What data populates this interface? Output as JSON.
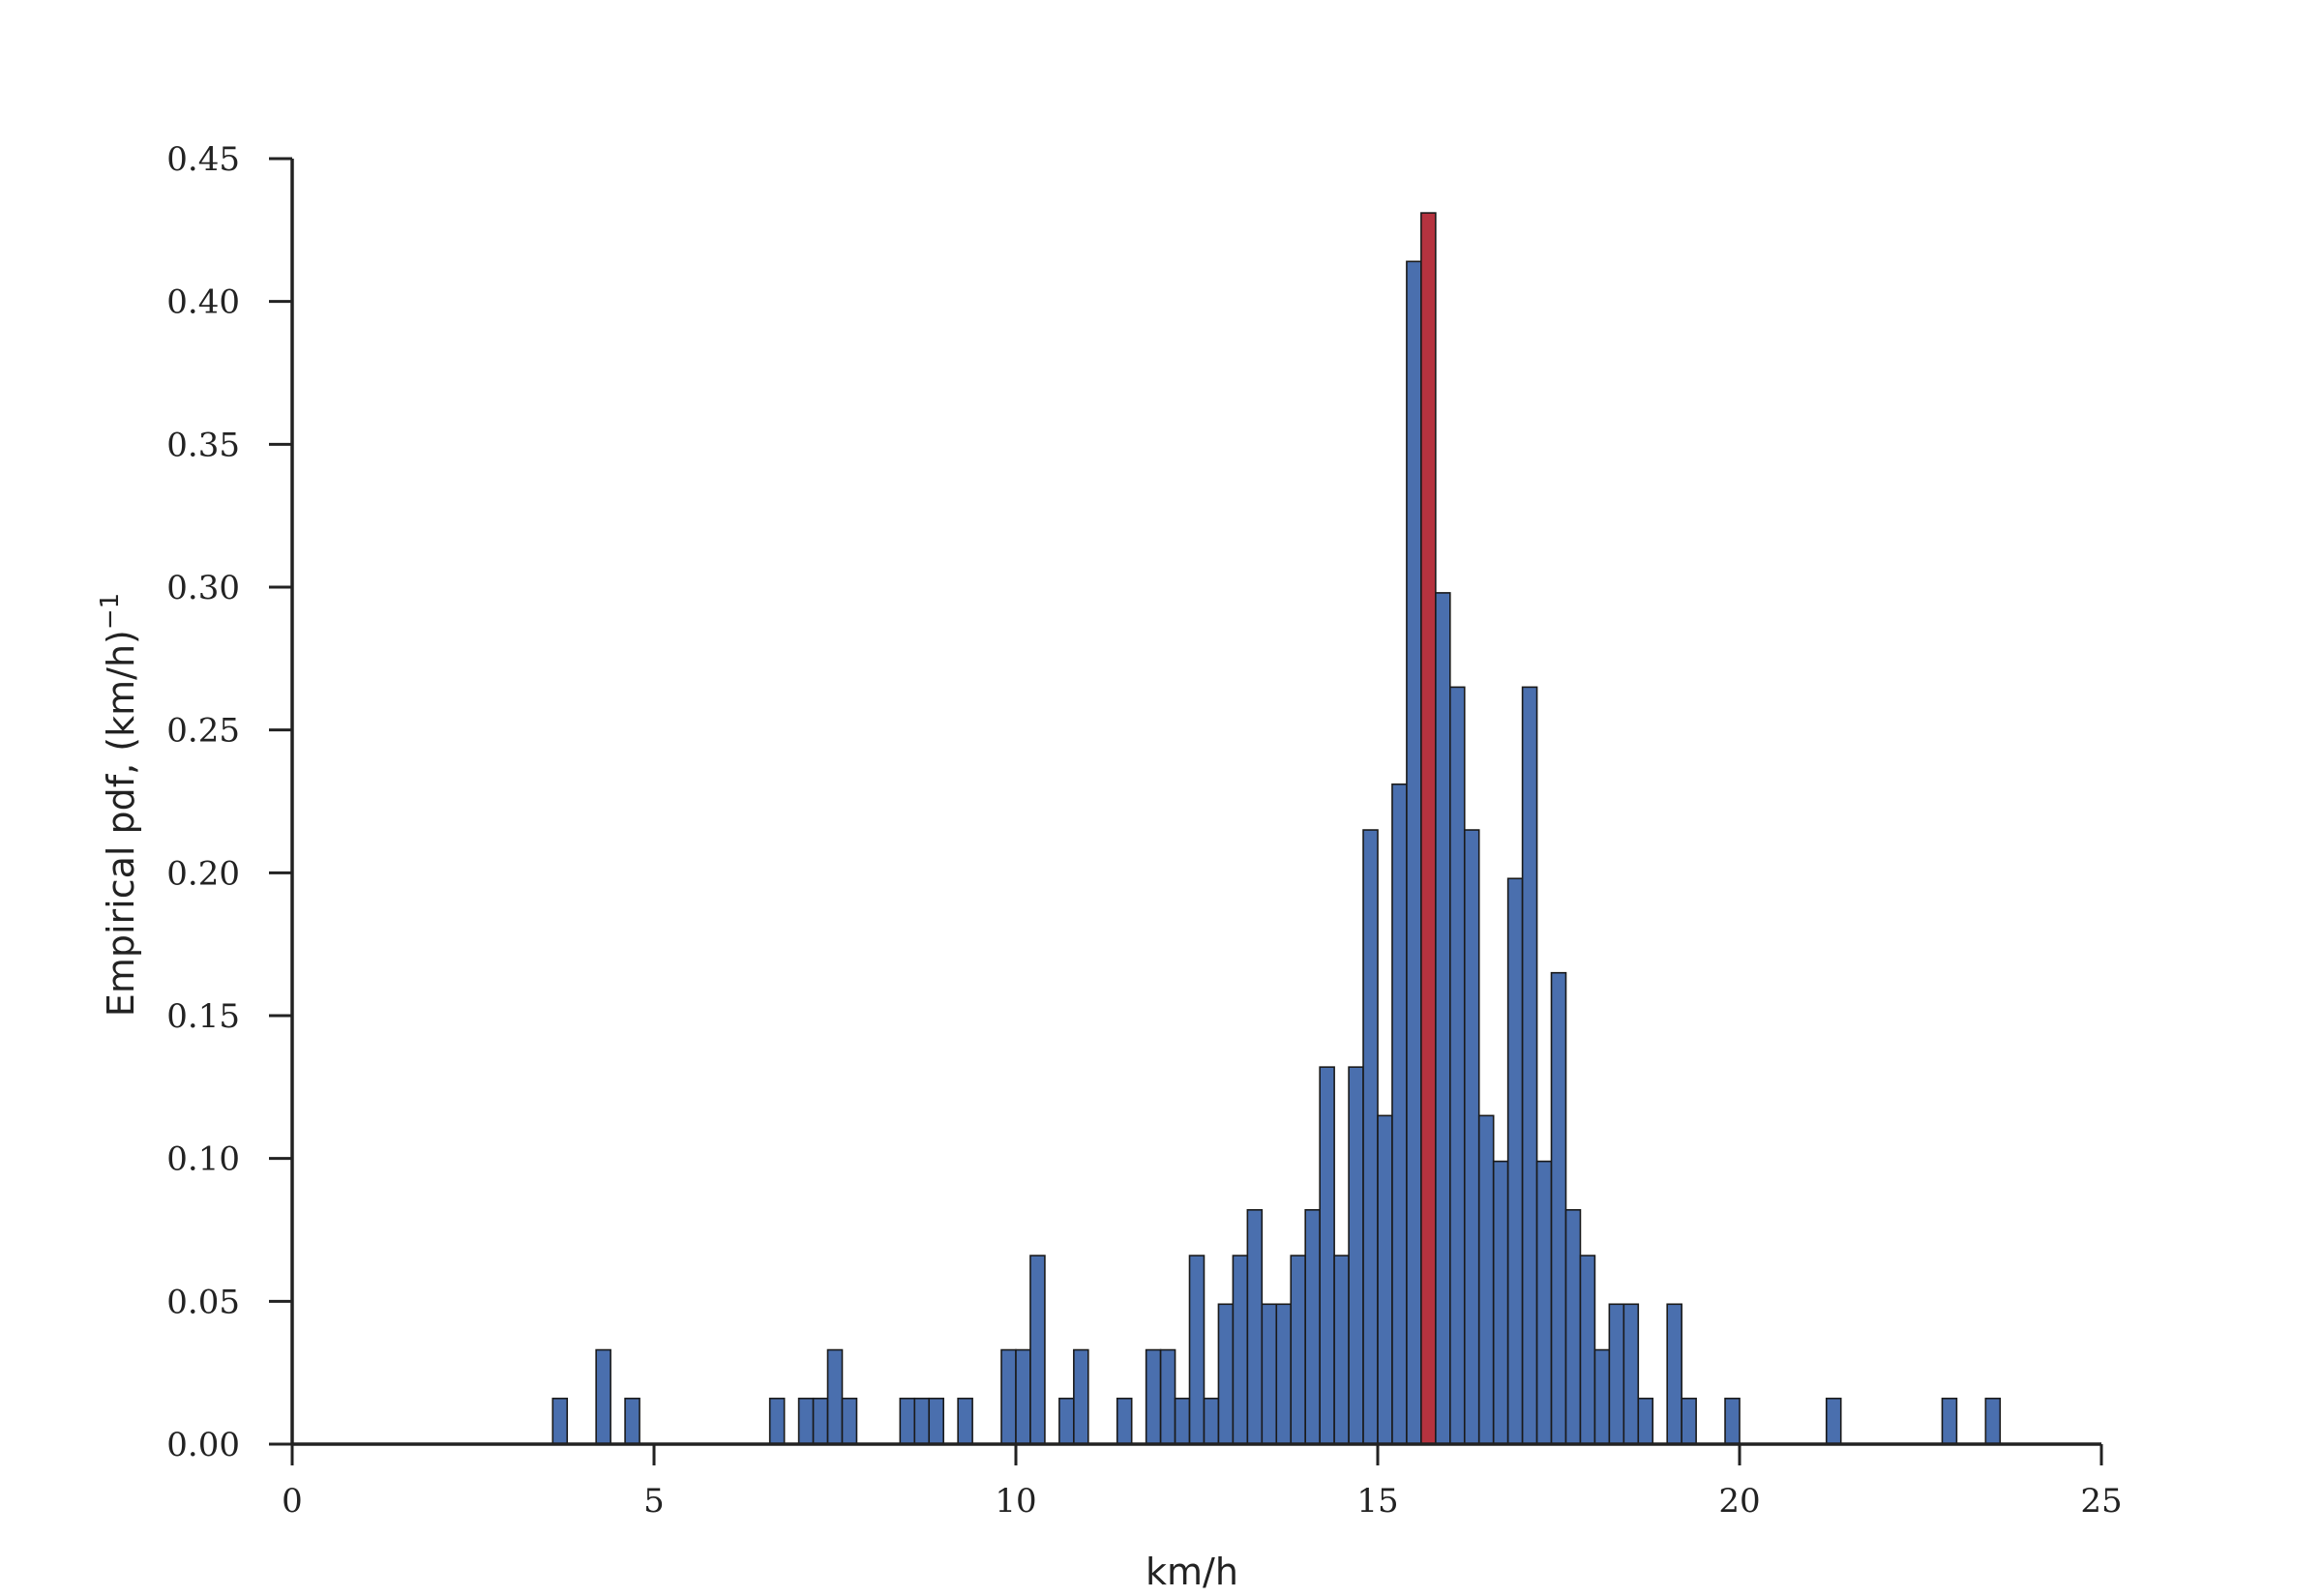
{
  "chart_data": {
    "type": "bar",
    "subtype": "histogram",
    "title": "",
    "xlabel": "km/h",
    "ylabel": "Empirical pdf, (km/h)",
    "ylabel_superscript": "−1",
    "xlim": [
      0,
      25
    ],
    "ylim": [
      0,
      0.45
    ],
    "xticks": [
      0,
      5,
      10,
      15,
      20,
      25
    ],
    "xtick_labels": [
      "0",
      "5",
      "10",
      "15",
      "20",
      "25"
    ],
    "yticks": [
      0,
      0.05,
      0.1,
      0.15,
      0.2,
      0.25,
      0.3,
      0.35,
      0.4,
      0.45
    ],
    "ytick_labels": [
      "0.00",
      "0.05",
      "0.10",
      "0.15",
      "0.20",
      "0.25",
      "0.30",
      "0.35",
      "0.40",
      "0.45"
    ],
    "grid": false,
    "bin_width": 0.2,
    "bar_color": "#4a6fae",
    "highlight_color": "#b5333f",
    "edge_color": "#1a1a1a",
    "bins": [
      {
        "x": 3.6,
        "value": 0.016
      },
      {
        "x": 4.2,
        "value": 0.033
      },
      {
        "x": 4.6,
        "value": 0.016
      },
      {
        "x": 6.6,
        "value": 0.016
      },
      {
        "x": 7.0,
        "value": 0.016
      },
      {
        "x": 7.2,
        "value": 0.016
      },
      {
        "x": 7.4,
        "value": 0.033
      },
      {
        "x": 7.6,
        "value": 0.016
      },
      {
        "x": 8.4,
        "value": 0.016
      },
      {
        "x": 8.6,
        "value": 0.016
      },
      {
        "x": 8.8,
        "value": 0.016
      },
      {
        "x": 9.2,
        "value": 0.016
      },
      {
        "x": 9.8,
        "value": 0.033
      },
      {
        "x": 10.0,
        "value": 0.033
      },
      {
        "x": 10.2,
        "value": 0.066
      },
      {
        "x": 10.6,
        "value": 0.016
      },
      {
        "x": 10.8,
        "value": 0.033
      },
      {
        "x": 11.4,
        "value": 0.016
      },
      {
        "x": 11.8,
        "value": 0.033
      },
      {
        "x": 12.0,
        "value": 0.033
      },
      {
        "x": 12.2,
        "value": 0.016
      },
      {
        "x": 12.4,
        "value": 0.066
      },
      {
        "x": 12.6,
        "value": 0.016
      },
      {
        "x": 12.8,
        "value": 0.049
      },
      {
        "x": 13.0,
        "value": 0.066
      },
      {
        "x": 13.2,
        "value": 0.082
      },
      {
        "x": 13.4,
        "value": 0.049
      },
      {
        "x": 13.6,
        "value": 0.049
      },
      {
        "x": 13.8,
        "value": 0.066
      },
      {
        "x": 14.0,
        "value": 0.082
      },
      {
        "x": 14.2,
        "value": 0.132
      },
      {
        "x": 14.4,
        "value": 0.066
      },
      {
        "x": 14.6,
        "value": 0.132
      },
      {
        "x": 14.8,
        "value": 0.215
      },
      {
        "x": 15.0,
        "value": 0.115
      },
      {
        "x": 15.2,
        "value": 0.231
      },
      {
        "x": 15.4,
        "value": 0.414
      },
      {
        "x": 15.6,
        "value": 0.431,
        "highlight": true
      },
      {
        "x": 15.8,
        "value": 0.298
      },
      {
        "x": 16.0,
        "value": 0.265
      },
      {
        "x": 16.2,
        "value": 0.215
      },
      {
        "x": 16.4,
        "value": 0.115
      },
      {
        "x": 16.6,
        "value": 0.099
      },
      {
        "x": 16.8,
        "value": 0.198
      },
      {
        "x": 17.0,
        "value": 0.265
      },
      {
        "x": 17.2,
        "value": 0.099
      },
      {
        "x": 17.4,
        "value": 0.165
      },
      {
        "x": 17.6,
        "value": 0.082
      },
      {
        "x": 17.8,
        "value": 0.066
      },
      {
        "x": 18.0,
        "value": 0.033
      },
      {
        "x": 18.2,
        "value": 0.049
      },
      {
        "x": 18.4,
        "value": 0.049
      },
      {
        "x": 18.6,
        "value": 0.016
      },
      {
        "x": 19.0,
        "value": 0.049
      },
      {
        "x": 19.2,
        "value": 0.016
      },
      {
        "x": 19.8,
        "value": 0.016
      },
      {
        "x": 21.2,
        "value": 0.016
      },
      {
        "x": 22.8,
        "value": 0.016
      },
      {
        "x": 23.4,
        "value": 0.016
      }
    ]
  }
}
